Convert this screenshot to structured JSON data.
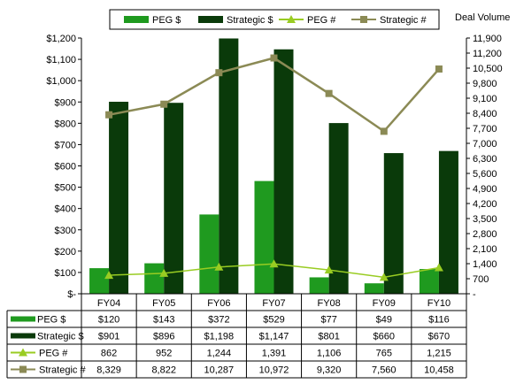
{
  "chart_data": {
    "type": "bar",
    "categories": [
      "FY04",
      "FY05",
      "FY06",
      "FY07",
      "FY08",
      "FY09",
      "FY10"
    ],
    "series": [
      {
        "name": "PEG $",
        "kind": "bar",
        "axis": "left",
        "color": "#1f9a1f",
        "values": [
          120,
          143,
          372,
          529,
          77,
          49,
          116
        ],
        "labels": [
          "$120",
          "$143",
          "$372",
          "$529",
          "$77",
          "$49",
          "$116"
        ]
      },
      {
        "name": "Strategic $",
        "kind": "bar",
        "axis": "left",
        "color": "#0a3a0a",
        "values": [
          901,
          896,
          1198,
          1147,
          801,
          660,
          670
        ],
        "labels": [
          "$901",
          "$896",
          "$1,198",
          "$1,147",
          "$801",
          "$660",
          "$670"
        ]
      },
      {
        "name": "PEG #",
        "kind": "line",
        "marker": "triangle",
        "axis": "right",
        "color": "#99cc22",
        "values": [
          862,
          952,
          1244,
          1391,
          1106,
          765,
          1215
        ],
        "labels": [
          "862",
          "952",
          "1,244",
          "1,391",
          "1,106",
          "765",
          "1,215"
        ]
      },
      {
        "name": "Strategic #",
        "kind": "line",
        "marker": "square",
        "axis": "right",
        "color": "#8b8a55",
        "values": [
          8329,
          8822,
          10287,
          10972,
          9320,
          7560,
          10458
        ],
        "labels": [
          "8,329",
          "8,822",
          "10,287",
          "10,972",
          "9,320",
          "7,560",
          "10,458"
        ]
      }
    ],
    "left_axis": {
      "range": [
        0,
        1200
      ],
      "ticks": [
        0,
        100,
        200,
        300,
        400,
        500,
        600,
        700,
        800,
        900,
        1000,
        1100,
        1200
      ],
      "tick_labels": [
        "$-",
        "$100",
        "$200",
        "$300",
        "$400",
        "$500",
        "$600",
        "$700",
        "$800",
        "$900",
        "$1,000",
        "$1,100",
        "$1,200"
      ]
    },
    "right_axis": {
      "title": "Deal Volume",
      "range": [
        0,
        11900
      ],
      "ticks": [
        0,
        700,
        1400,
        2100,
        2800,
        3500,
        4200,
        4900,
        5600,
        6300,
        7000,
        7700,
        8400,
        9100,
        9800,
        10500,
        11200,
        11900
      ],
      "tick_labels": [
        "-",
        "700",
        "1,400",
        "2,100",
        "2,800",
        "3,500",
        "4,200",
        "4,900",
        "5,600",
        "6,300",
        "7,000",
        "7,700",
        "8,400",
        "9,100",
        "9,800",
        "10,500",
        "11,200",
        "11,900"
      ]
    },
    "legend_position": "top",
    "grid": false,
    "has_data_table": true
  }
}
